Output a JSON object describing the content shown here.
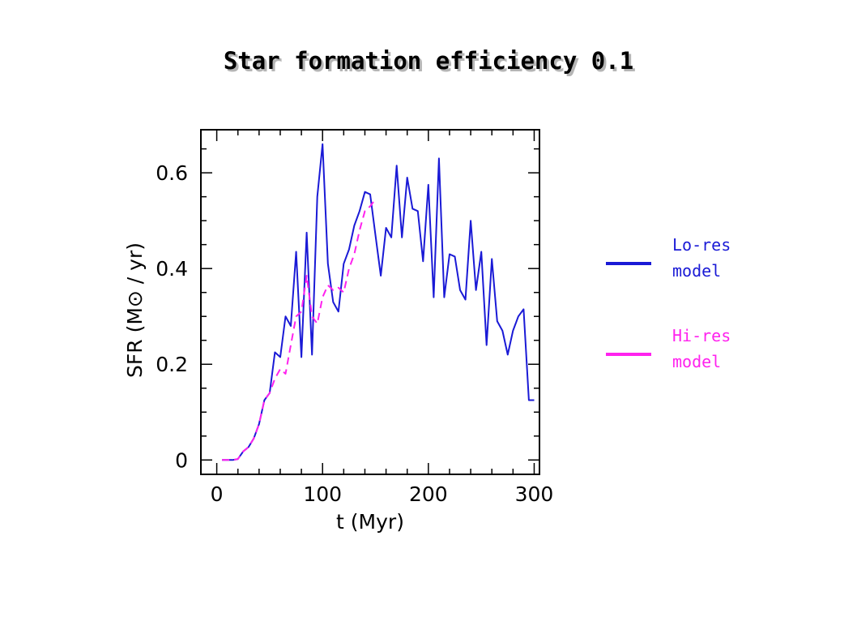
{
  "chart_data": {
    "type": "line",
    "title": "Star formation efficiency 0.1",
    "xlabel": "t (Myr)",
    "ylabel": "SFR (M⊙ / yr)",
    "xlim": [
      -15,
      305
    ],
    "ylim": [
      -0.03,
      0.69
    ],
    "xticks": [
      0,
      100,
      200,
      300
    ],
    "yticks": [
      0,
      0.2,
      0.4,
      0.6
    ],
    "xtick_labels": [
      "0",
      "100",
      "200",
      "300"
    ],
    "ytick_labels": [
      "0",
      "0.2",
      "0.4",
      "0.6"
    ],
    "grid": false,
    "legend_position": "right",
    "series": [
      {
        "name": "Lo-res model",
        "label_line1": "Lo-res",
        "label_line2": "model",
        "color": "#1a1ad6",
        "style": "solid",
        "x": [
          5,
          10,
          15,
          20,
          25,
          30,
          35,
          40,
          45,
          50,
          55,
          60,
          65,
          70,
          75,
          80,
          85,
          90,
          95,
          100,
          105,
          110,
          115,
          120,
          125,
          130,
          135,
          140,
          145,
          150,
          155,
          160,
          165,
          170,
          175,
          180,
          185,
          190,
          195,
          200,
          205,
          210,
          215,
          220,
          225,
          230,
          235,
          240,
          245,
          250,
          255,
          260,
          265,
          270,
          275,
          280,
          285,
          290,
          295,
          300
        ],
        "y": [
          0,
          0,
          0,
          0.002,
          0.018,
          0.027,
          0.045,
          0.075,
          0.125,
          0.14,
          0.225,
          0.215,
          0.3,
          0.28,
          0.435,
          0.215,
          0.475,
          0.22,
          0.55,
          0.66,
          0.41,
          0.33,
          0.31,
          0.41,
          0.44,
          0.49,
          0.52,
          0.56,
          0.555,
          0.47,
          0.385,
          0.485,
          0.465,
          0.615,
          0.465,
          0.59,
          0.525,
          0.52,
          0.415,
          0.575,
          0.34,
          0.63,
          0.34,
          0.43,
          0.425,
          0.355,
          0.335,
          0.5,
          0.355,
          0.435,
          0.24,
          0.42,
          0.29,
          0.27,
          0.22,
          0.27,
          0.3,
          0.315,
          0.125,
          0.125
        ]
      },
      {
        "name": "Hi-res model",
        "label_line1": "Hi-res",
        "label_line2": "model",
        "color": "#ff22ee",
        "style": "dashed",
        "x": [
          5,
          10,
          15,
          20,
          25,
          30,
          35,
          40,
          45,
          50,
          55,
          60,
          65,
          70,
          75,
          80,
          85,
          90,
          95,
          100,
          105,
          110,
          115,
          120,
          125,
          130,
          135,
          140,
          145,
          150
        ],
        "y": [
          0,
          0,
          0,
          0.002,
          0.018,
          0.027,
          0.045,
          0.075,
          0.125,
          0.14,
          0.17,
          0.19,
          0.18,
          0.24,
          0.3,
          0.31,
          0.385,
          0.3,
          0.285,
          0.34,
          0.365,
          0.355,
          0.36,
          0.35,
          0.4,
          0.43,
          0.48,
          0.52,
          0.53,
          0.545
        ]
      }
    ]
  }
}
